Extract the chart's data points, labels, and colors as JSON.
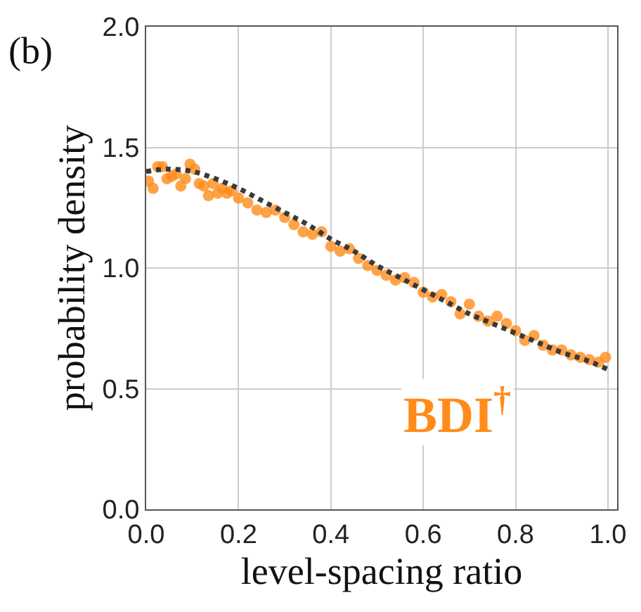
{
  "chart_data": {
    "type": "scatter",
    "xlabel": "level-spacing ratio",
    "ylabel": "probability density",
    "annotations": [
      "(b)",
      "BDI$^{†}$"
    ],
    "series": [
      {
        "color": "#ff8c1a",
        "marker": "circle",
        "x": [
          0.005,
          0.015,
          0.025,
          0.035,
          0.045,
          0.055,
          0.065,
          0.075,
          0.085,
          0.095,
          0.105,
          0.115,
          0.125,
          0.135,
          0.145,
          0.155,
          0.165,
          0.175,
          0.185,
          0.2,
          0.22,
          0.24,
          0.26,
          0.28,
          0.3,
          0.32,
          0.34,
          0.36,
          0.38,
          0.4,
          0.42,
          0.44,
          0.46,
          0.48,
          0.5,
          0.52,
          0.54,
          0.56,
          0.58,
          0.6,
          0.62,
          0.64,
          0.66,
          0.68,
          0.7,
          0.72,
          0.74,
          0.76,
          0.78,
          0.8,
          0.82,
          0.84,
          0.86,
          0.88,
          0.9,
          0.92,
          0.94,
          0.96,
          0.98,
          0.995
        ],
        "values": [
          1.36,
          1.33,
          1.42,
          1.42,
          1.37,
          1.38,
          1.39,
          1.34,
          1.37,
          1.43,
          1.41,
          1.35,
          1.34,
          1.3,
          1.35,
          1.31,
          1.33,
          1.31,
          1.32,
          1.29,
          1.27,
          1.24,
          1.23,
          1.24,
          1.21,
          1.18,
          1.15,
          1.14,
          1.15,
          1.09,
          1.07,
          1.08,
          1.04,
          1.01,
          0.99,
          0.97,
          0.95,
          0.96,
          0.94,
          0.9,
          0.88,
          0.89,
          0.86,
          0.81,
          0.85,
          0.8,
          0.78,
          0.8,
          0.77,
          0.74,
          0.7,
          0.72,
          0.68,
          0.66,
          0.66,
          0.64,
          0.63,
          0.62,
          0.61,
          0.63
        ]
      },
      {
        "type": "line",
        "color": "#3a3a3a",
        "line_style": "dotted",
        "marker": "none",
        "x": [
          0,
          0.05,
          0.1,
          0.15,
          0.2,
          0.25,
          0.3,
          0.35,
          0.4,
          0.45,
          0.5,
          0.55,
          0.6,
          0.65,
          0.7,
          0.75,
          0.8,
          0.85,
          0.9,
          0.95,
          1.0
        ],
        "values": [
          1.4,
          1.41,
          1.4,
          1.37,
          1.33,
          1.28,
          1.23,
          1.18,
          1.12,
          1.07,
          1.01,
          0.96,
          0.91,
          0.86,
          0.81,
          0.77,
          0.73,
          0.69,
          0.65,
          0.62,
          0.58
        ]
      }
    ],
    "xlim": [
      0,
      1.02
    ],
    "xticks": [
      {
        "value": 0,
        "label": "0.0"
      },
      0.2,
      0.4,
      0.6,
      0.8,
      {
        "value": 1,
        "label": "1.0"
      }
    ],
    "ylim": [
      0,
      2
    ],
    "yticks": [
      {
        "value": 0,
        "label": "0.0"
      },
      0.5,
      {
        "value": 1,
        "label": "1.0"
      },
      1.5,
      {
        "value": 2,
        "label": "2.0"
      }
    ],
    "grid": true
  }
}
